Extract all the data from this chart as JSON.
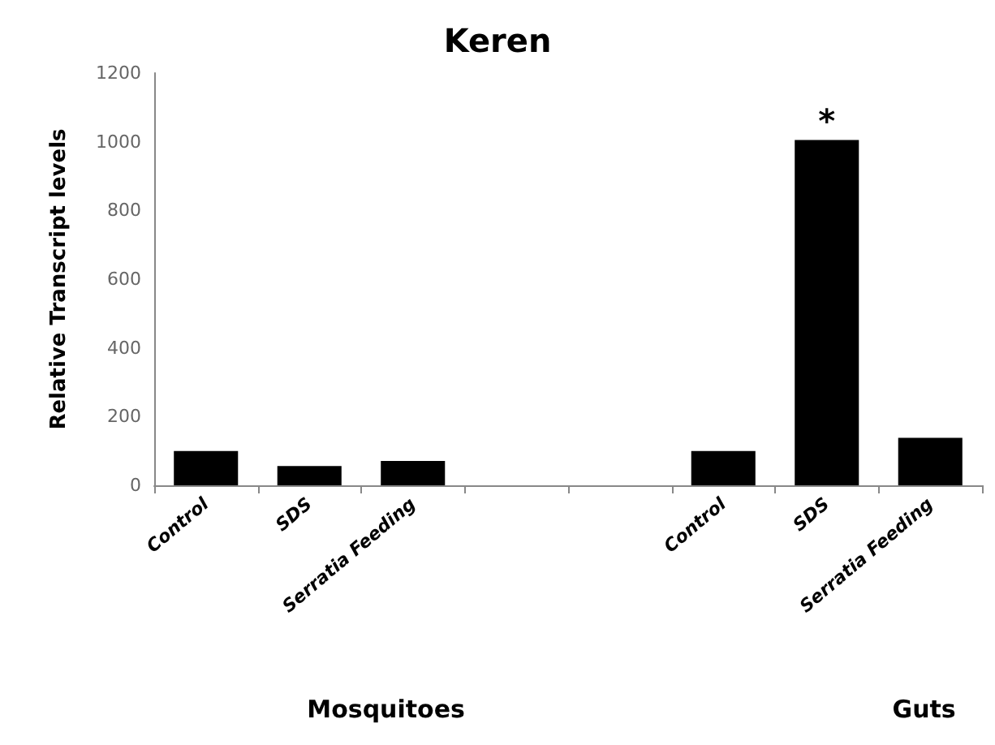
{
  "chart_data": {
    "type": "bar",
    "title": "Keren",
    "ylabel": "Relative Transcript levels",
    "categories": [
      "Control",
      "SDS",
      "Serratia Feeding",
      null,
      null,
      "Control",
      "SDS",
      "Serratia Feeding"
    ],
    "values": [
      100,
      56,
      71,
      null,
      null,
      100,
      1005,
      138
    ],
    "color": "#000000",
    "ylim": [
      0,
      1200
    ],
    "yticks": [
      0,
      200,
      400,
      600,
      800,
      1000,
      1200
    ],
    "grid": false,
    "annotations": [
      "Mosquitoes",
      "Guts",
      "*"
    ]
  }
}
